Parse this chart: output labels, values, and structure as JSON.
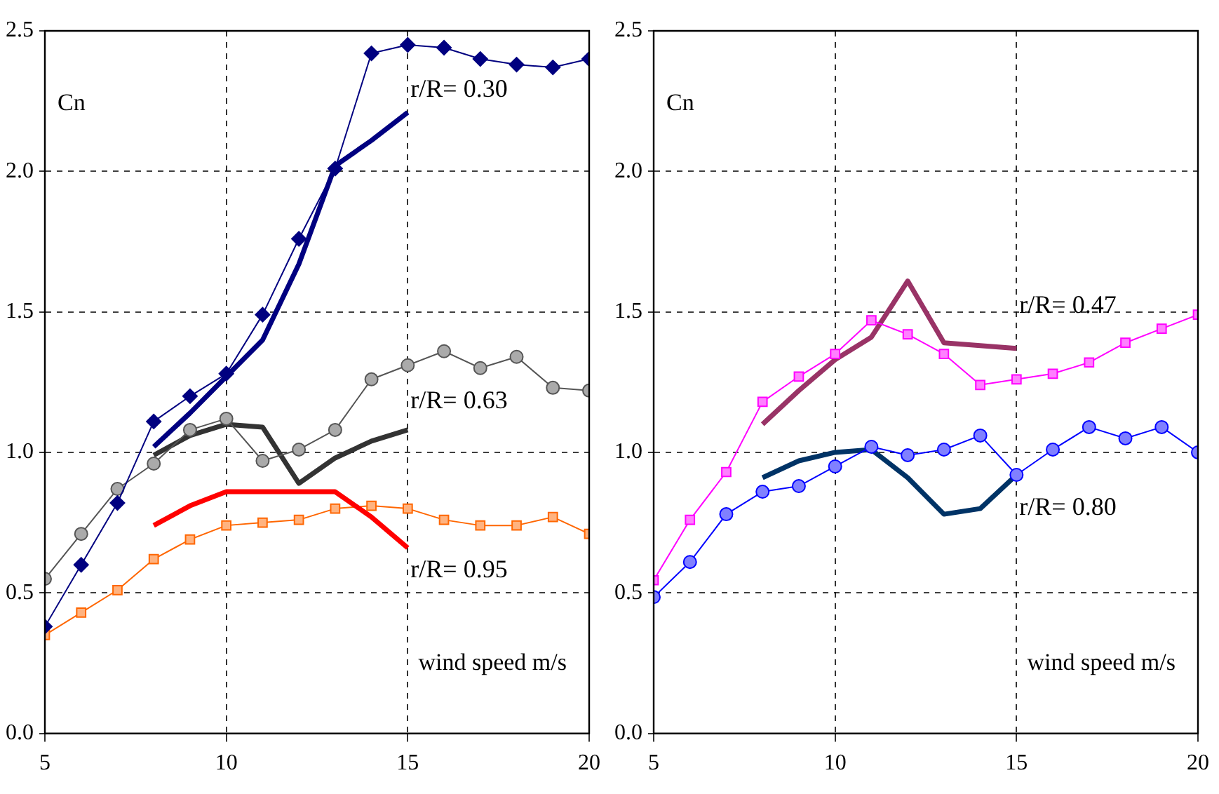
{
  "chart_data": [
    {
      "type": "line",
      "ylabel": "Cn",
      "xlabel": "wind speed m/s",
      "xlim": [
        5,
        20
      ],
      "xticks": [
        5,
        10,
        15,
        20
      ],
      "ylim": [
        0,
        2.5
      ],
      "yticks": [
        {
          "value": 0,
          "label": "0.0"
        },
        {
          "value": 0.5,
          "label": "0.5"
        },
        {
          "value": 1,
          "label": "1.0"
        },
        {
          "value": 1.5,
          "label": "1.5"
        },
        {
          "value": 2,
          "label": "2.0"
        },
        {
          "value": 2.5,
          "label": "2.5"
        }
      ],
      "grid": true,
      "legend": false,
      "series": [
        {
          "color": "#000080",
          "marker": "diamond",
          "x": [
            5,
            6,
            7,
            8,
            9,
            10,
            11,
            12,
            13,
            14,
            15,
            16,
            17,
            18,
            19,
            20
          ],
          "values": [
            0.38,
            0.6,
            0.82,
            1.11,
            1.2,
            1.28,
            1.49,
            1.76,
            2.01,
            2.42,
            2.45,
            2.44,
            2.4,
            2.38,
            2.37,
            2.4
          ]
        },
        {
          "color": "#000080",
          "marker": "none",
          "x": [
            8,
            9,
            10,
            11,
            12,
            13,
            14,
            15
          ],
          "values": [
            1.02,
            1.14,
            1.27,
            1.4,
            1.67,
            2.02,
            2.11,
            2.21
          ]
        },
        {
          "color": "#555555",
          "marker": "circle",
          "x": [
            5,
            6,
            7,
            8,
            9,
            10,
            11,
            12,
            13,
            14,
            15,
            16,
            17,
            18,
            19,
            20
          ],
          "values": [
            0.55,
            0.71,
            0.87,
            0.96,
            1.08,
            1.12,
            0.97,
            1.01,
            1.08,
            1.26,
            1.31,
            1.36,
            1.3,
            1.34,
            1.23,
            1.22
          ]
        },
        {
          "color": "#333333",
          "marker": "none",
          "x": [
            8,
            9,
            10,
            11,
            12,
            13,
            14,
            15
          ],
          "values": [
            0.99,
            1.06,
            1.1,
            1.09,
            0.89,
            0.98,
            1.04,
            1.08
          ]
        },
        {
          "color": "#ff0000",
          "marker": "none",
          "x": [
            8,
            9,
            10,
            11,
            12,
            13,
            14,
            15
          ],
          "values": [
            0.74,
            0.81,
            0.86,
            0.86,
            0.86,
            0.86,
            0.77,
            0.66
          ]
        },
        {
          "color": "#ff6600",
          "marker": "square",
          "x": [
            5,
            6,
            7,
            8,
            9,
            10,
            11,
            12,
            13,
            14,
            15,
            16,
            17,
            18,
            19,
            20
          ],
          "values": [
            0.35,
            0.43,
            0.51,
            0.62,
            0.69,
            0.74,
            0.75,
            0.76,
            0.8,
            0.81,
            0.8,
            0.76,
            0.74,
            0.74,
            0.77,
            0.71
          ]
        }
      ],
      "annotations": [
        "r/R= 0.30",
        "r/R= 0.63",
        "r/R= 0.95"
      ]
    },
    {
      "type": "line",
      "ylabel": "Cn",
      "xlabel": "wind speed m/s",
      "xlim": [
        5,
        20
      ],
      "xticks": [
        5,
        10,
        15,
        20
      ],
      "ylim": [
        0,
        2.5
      ],
      "yticks": [
        {
          "value": 0,
          "label": "0.0"
        },
        {
          "value": 0.5,
          "label": "0.5"
        },
        {
          "value": 1,
          "label": "1.0"
        },
        {
          "value": 1.5,
          "label": "1.5"
        },
        {
          "value": 2,
          "label": "2.0"
        },
        {
          "value": 2.5,
          "label": "2.5"
        }
      ],
      "grid": true,
      "legend": false,
      "series": [
        {
          "color": "#ff00ff",
          "marker": "square",
          "x": [
            5,
            6,
            7,
            8,
            9,
            10,
            11,
            12,
            13,
            14,
            15,
            16,
            17,
            18,
            19,
            20
          ],
          "values": [
            0.545,
            0.76,
            0.93,
            1.18,
            1.27,
            1.35,
            1.47,
            1.42,
            1.35,
            1.24,
            1.26,
            1.28,
            1.32,
            1.39,
            1.44,
            1.49
          ]
        },
        {
          "color": "#993366",
          "marker": "none",
          "x": [
            8,
            9,
            10,
            11,
            12,
            13,
            14,
            15
          ],
          "values": [
            1.1,
            1.22,
            1.33,
            1.41,
            1.61,
            1.39,
            1.38,
            1.37
          ]
        },
        {
          "color": "#0000ff",
          "marker": "circle",
          "x": [
            5,
            6,
            7,
            8,
            9,
            10,
            11,
            12,
            13,
            14,
            15,
            16,
            17,
            18,
            19,
            20
          ],
          "values": [
            0.485,
            0.61,
            0.78,
            0.86,
            0.88,
            0.95,
            1.02,
            0.99,
            1.01,
            1.06,
            0.92,
            1.01,
            1.09,
            1.05,
            1.09,
            1.0
          ]
        },
        {
          "color": "#003366",
          "marker": "none",
          "x": [
            8,
            9,
            10,
            11,
            12,
            13,
            14,
            15
          ],
          "values": [
            0.91,
            0.97,
            1.0,
            1.01,
            0.91,
            0.78,
            0.8,
            0.92
          ]
        }
      ],
      "annotations": [
        "r/R= 0.47",
        "r/R= 0.80"
      ]
    }
  ]
}
